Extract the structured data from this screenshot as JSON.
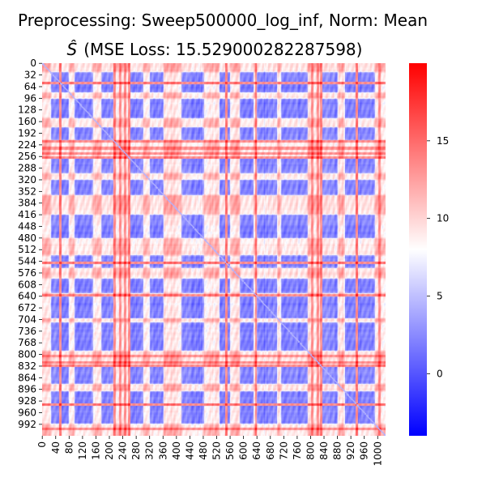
{
  "chart_data": {
    "type": "heatmap",
    "title_line1": "Preprocessing: Sweep500000_log_inf, Norm: Mean",
    "title_line2_symbol": "Ŝ",
    "title_line2_text": "(MSE Loss: 15.529000282287598)",
    "size": 1024,
    "y_ticks": [
      "0",
      "32",
      "64",
      "96",
      "128",
      "160",
      "192",
      "224",
      "256",
      "288",
      "320",
      "352",
      "384",
      "416",
      "448",
      "480",
      "512",
      "544",
      "576",
      "608",
      "640",
      "672",
      "704",
      "736",
      "768",
      "800",
      "832",
      "864",
      "896",
      "928",
      "960",
      "992"
    ],
    "x_ticks": [
      "0",
      "40",
      "80",
      "120",
      "160",
      "200",
      "240",
      "280",
      "320",
      "360",
      "400",
      "440",
      "480",
      "520",
      "560",
      "600",
      "640",
      "680",
      "720",
      "760",
      "800",
      "840",
      "880",
      "920",
      "960",
      "1000"
    ],
    "colorbar": {
      "min": -4,
      "max": 20,
      "ticks": [
        "0",
        "5",
        "10",
        "15"
      ],
      "colors": [
        "#0000ff",
        "#ffffff",
        "#ff0000"
      ]
    }
  }
}
